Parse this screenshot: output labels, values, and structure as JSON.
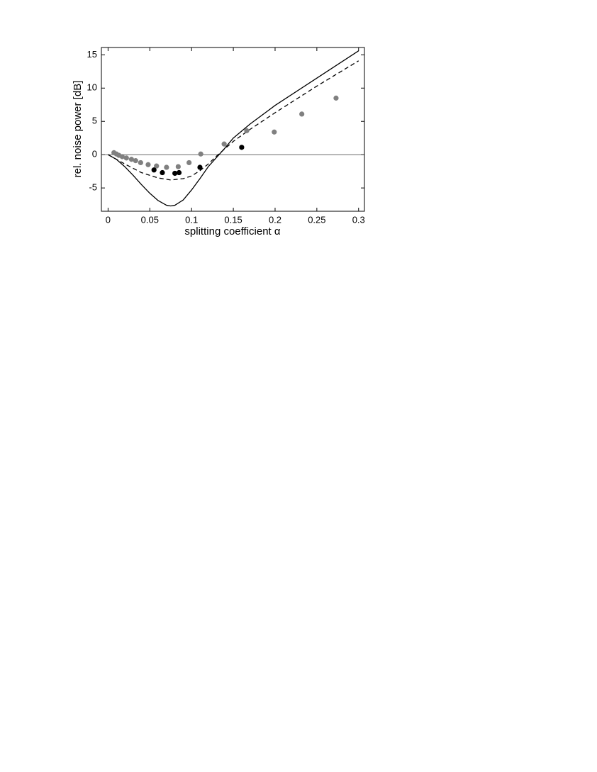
{
  "chart_data": {
    "type": "scatter-line",
    "x_label": "splitting coefficient α",
    "y_label": "rel. noise power [dB]",
    "xlim": [
      -0.008,
      0.307
    ],
    "ylim": [
      -8.5,
      16.1
    ],
    "xticks": [
      0,
      0.05,
      0.1,
      0.15,
      0.2,
      0.25,
      0.3
    ],
    "yticks": [
      -5,
      0,
      5,
      10,
      15
    ],
    "reference_line": 0,
    "series": [
      {
        "style": "solid",
        "color": "#000000",
        "x": [
          0,
          0.01,
          0.02,
          0.03,
          0.04,
          0.05,
          0.06,
          0.07,
          0.075,
          0.08,
          0.09,
          0.1,
          0.11,
          0.12,
          0.13,
          0.14,
          0.15,
          0.17,
          0.2,
          0.25,
          0.3
        ],
        "values": [
          0,
          -0.7,
          -1.8,
          -3.1,
          -4.5,
          -5.8,
          -6.9,
          -7.6,
          -7.7,
          -7.6,
          -6.8,
          -5.3,
          -3.6,
          -1.8,
          -0.4,
          1.0,
          2.5,
          4.6,
          7.4,
          11.5,
          15.6
        ]
      },
      {
        "style": "dashed",
        "color": "#000000",
        "x": [
          0,
          0.02,
          0.04,
          0.06,
          0.075,
          0.09,
          0.1,
          0.11,
          0.12,
          0.13,
          0.14,
          0.15,
          0.17,
          0.2,
          0.25,
          0.3
        ],
        "values": [
          0,
          -1.4,
          -2.7,
          -3.5,
          -3.8,
          -3.6,
          -3.2,
          -2.4,
          -1.4,
          -0.2,
          0.9,
          2.0,
          3.8,
          6.3,
          10.3,
          14.1
        ]
      },
      {
        "style": "dots",
        "color": "#808080",
        "x": [
          0.007,
          0.01,
          0.013,
          0.017,
          0.022,
          0.028,
          0.033,
          0.039,
          0.048,
          0.058,
          0.07,
          0.084,
          0.097,
          0.111,
          0.139,
          0.166,
          0.199,
          0.232,
          0.273
        ],
        "values": [
          0.3,
          0.1,
          -0.1,
          -0.3,
          -0.5,
          -0.7,
          -0.9,
          -1.2,
          -1.5,
          -1.7,
          -1.9,
          -1.8,
          -1.2,
          0.1,
          1.6,
          3.6,
          3.4,
          6.1,
          8.5
        ]
      },
      {
        "style": "dots",
        "color": "#000000",
        "x": [
          0.055,
          0.065,
          0.08,
          0.085,
          0.11,
          0.16
        ],
        "values": [
          -2.3,
          -2.7,
          -2.8,
          -2.7,
          -1.9,
          1.1
        ]
      }
    ]
  }
}
